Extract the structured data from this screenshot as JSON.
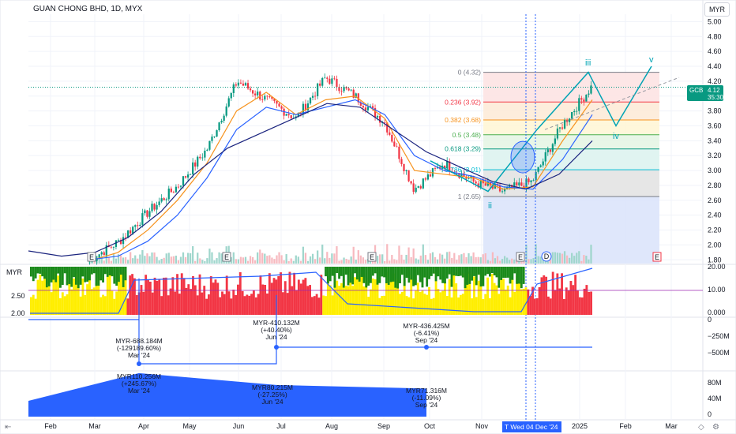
{
  "title": "GUAN CHONG BHD, 1D, MYX",
  "currency_top": "MYR",
  "currency_ind": "MYR",
  "price_badge": {
    "symbol": "GCB",
    "price": "4.12",
    "countdown": "35:30"
  },
  "colors": {
    "up": "#089981",
    "down": "#f23645",
    "blue": "#2962ff",
    "navy": "#1a237e",
    "orange": "#f7931e",
    "cyan": "#00a3b4",
    "grid": "#f0f3fa"
  },
  "wave_labels": [
    "iii",
    "iv",
    "v",
    "ii"
  ],
  "x_axis": {
    "labels": [
      "Feb",
      "Mar",
      "Apr",
      "May",
      "Jun",
      "Jul",
      "Aug",
      "Sep",
      "Oct",
      "Nov",
      "2025",
      "Feb",
      "Mar"
    ],
    "crosshair_label": "Wed 04 Dec '24"
  },
  "earnings_marker": "E",
  "dividend_marker": "D",
  "fib_levels": [
    {
      "label": "0 (4.32)",
      "value": 4.32
    },
    {
      "label": "0.236 (3.92)",
      "value": 3.92
    },
    {
      "label": "0.382 (3.68)",
      "value": 3.68
    },
    {
      "label": "0.5 (3.48)",
      "value": 3.48
    },
    {
      "label": "0.618 (3.29)",
      "value": 3.29
    },
    {
      "label": "0.786 (3.01)",
      "value": 3.01
    },
    {
      "label": "1 (2.65)",
      "value": 2.65
    }
  ],
  "indicator_left_ticks": [
    "2.50",
    "2.00"
  ],
  "indicator_right_ticks": [
    "20.00",
    "10.00",
    "0.000"
  ],
  "fund_right_ticks": [
    "0",
    "−250M",
    "−500M"
  ],
  "rev_right_ticks": [
    "80M",
    "40M",
    "0"
  ],
  "annotations": [
    {
      "lines": [
        "MYR-688.184M",
        "(-129189.60%)",
        "Mar '24"
      ]
    },
    {
      "lines": [
        "MYR-410.132M",
        "(+40.40%)",
        "Jun '24"
      ]
    },
    {
      "lines": [
        "MYR-436.425M",
        "(-6.41%)",
        "Sep '24"
      ]
    },
    {
      "lines": [
        "MYR110.256M",
        "(+245.67%)",
        "Mar '24"
      ]
    },
    {
      "lines": [
        "MYR80.215M",
        "(-27.25%)",
        "Jun '24"
      ]
    },
    {
      "lines": [
        "MYR71.316M",
        "(-11.09%)",
        "Sep '24"
      ]
    }
  ],
  "chart_data": {
    "type": "candlestick",
    "title": "GUAN CHONG BHD, 1D, MYX",
    "y_ticks": [
      "5.00",
      "4.80",
      "4.60",
      "4.40",
      "4.20",
      "4.00",
      "3.80",
      "3.60",
      "3.40",
      "3.20",
      "3.00",
      "2.80",
      "2.60",
      "2.40",
      "2.20",
      "2.00",
      "1.80"
    ],
    "ylim": [
      1.75,
      5.1
    ],
    "last_price": 4.12,
    "price_path": [
      [
        "Mar '24",
        1.8
      ],
      [
        "Apr '24",
        2.05
      ],
      [
        "Apr '24",
        2.45
      ],
      [
        "May '24",
        2.8
      ],
      [
        "May '24",
        3.3
      ],
      [
        "Jun '24",
        4.2
      ],
      [
        "Jun '24",
        3.95
      ],
      [
        "Jul '24",
        3.7
      ],
      [
        "Jul '24",
        4.25
      ],
      [
        "Aug '24",
        4.0
      ],
      [
        "Aug '24",
        3.65
      ],
      [
        "Sep '24",
        2.75
      ],
      [
        "Oct '24",
        3.1
      ],
      [
        "Oct '24",
        2.85
      ],
      [
        "Nov '24",
        2.72
      ],
      [
        "Dec '24",
        2.85
      ],
      [
        "Dec '24",
        3.6
      ],
      [
        "Jan '25",
        4.12
      ]
    ],
    "ema_fast": [
      1.78,
      1.9,
      2.2,
      2.6,
      3.1,
      3.8,
      4.05,
      3.75,
      3.95,
      4.0,
      3.7,
      3.0,
      2.95,
      2.9,
      2.75,
      2.78,
      3.4,
      3.95
    ],
    "ema_mid": [
      1.8,
      1.85,
      2.05,
      2.4,
      2.9,
      3.55,
      3.85,
      3.75,
      3.85,
      3.95,
      3.75,
      3.2,
      3.0,
      2.92,
      2.78,
      2.75,
      3.15,
      3.75
    ],
    "ema_slow": [
      1.92,
      1.85,
      1.9,
      2.1,
      2.45,
      2.95,
      3.3,
      3.5,
      3.7,
      3.9,
      3.85,
      3.55,
      3.25,
      3.05,
      2.85,
      2.75,
      2.95,
      3.4
    ],
    "elliott_path": [
      3.13,
      2.72,
      3.55,
      4.32,
      3.6,
      4.4
    ],
    "fund_series": [
      {
        "period": "Mar '24",
        "value_myr_m": -688.184,
        "change_pct": -129189.6
      },
      {
        "period": "Jun '24",
        "value_myr_m": -410.132,
        "change_pct": 40.4
      },
      {
        "period": "Sep '24",
        "value_myr_m": -436.425,
        "change_pct": -6.41
      }
    ],
    "revenue_series": [
      {
        "period": "Mar '24",
        "value_myr_m": 110.256,
        "change_pct": 245.67
      },
      {
        "period": "Jun '24",
        "value_myr_m": 80.215,
        "change_pct": -27.25
      },
      {
        "period": "Sep '24",
        "value_myr_m": 71.316,
        "change_pct": -11.09
      }
    ]
  }
}
